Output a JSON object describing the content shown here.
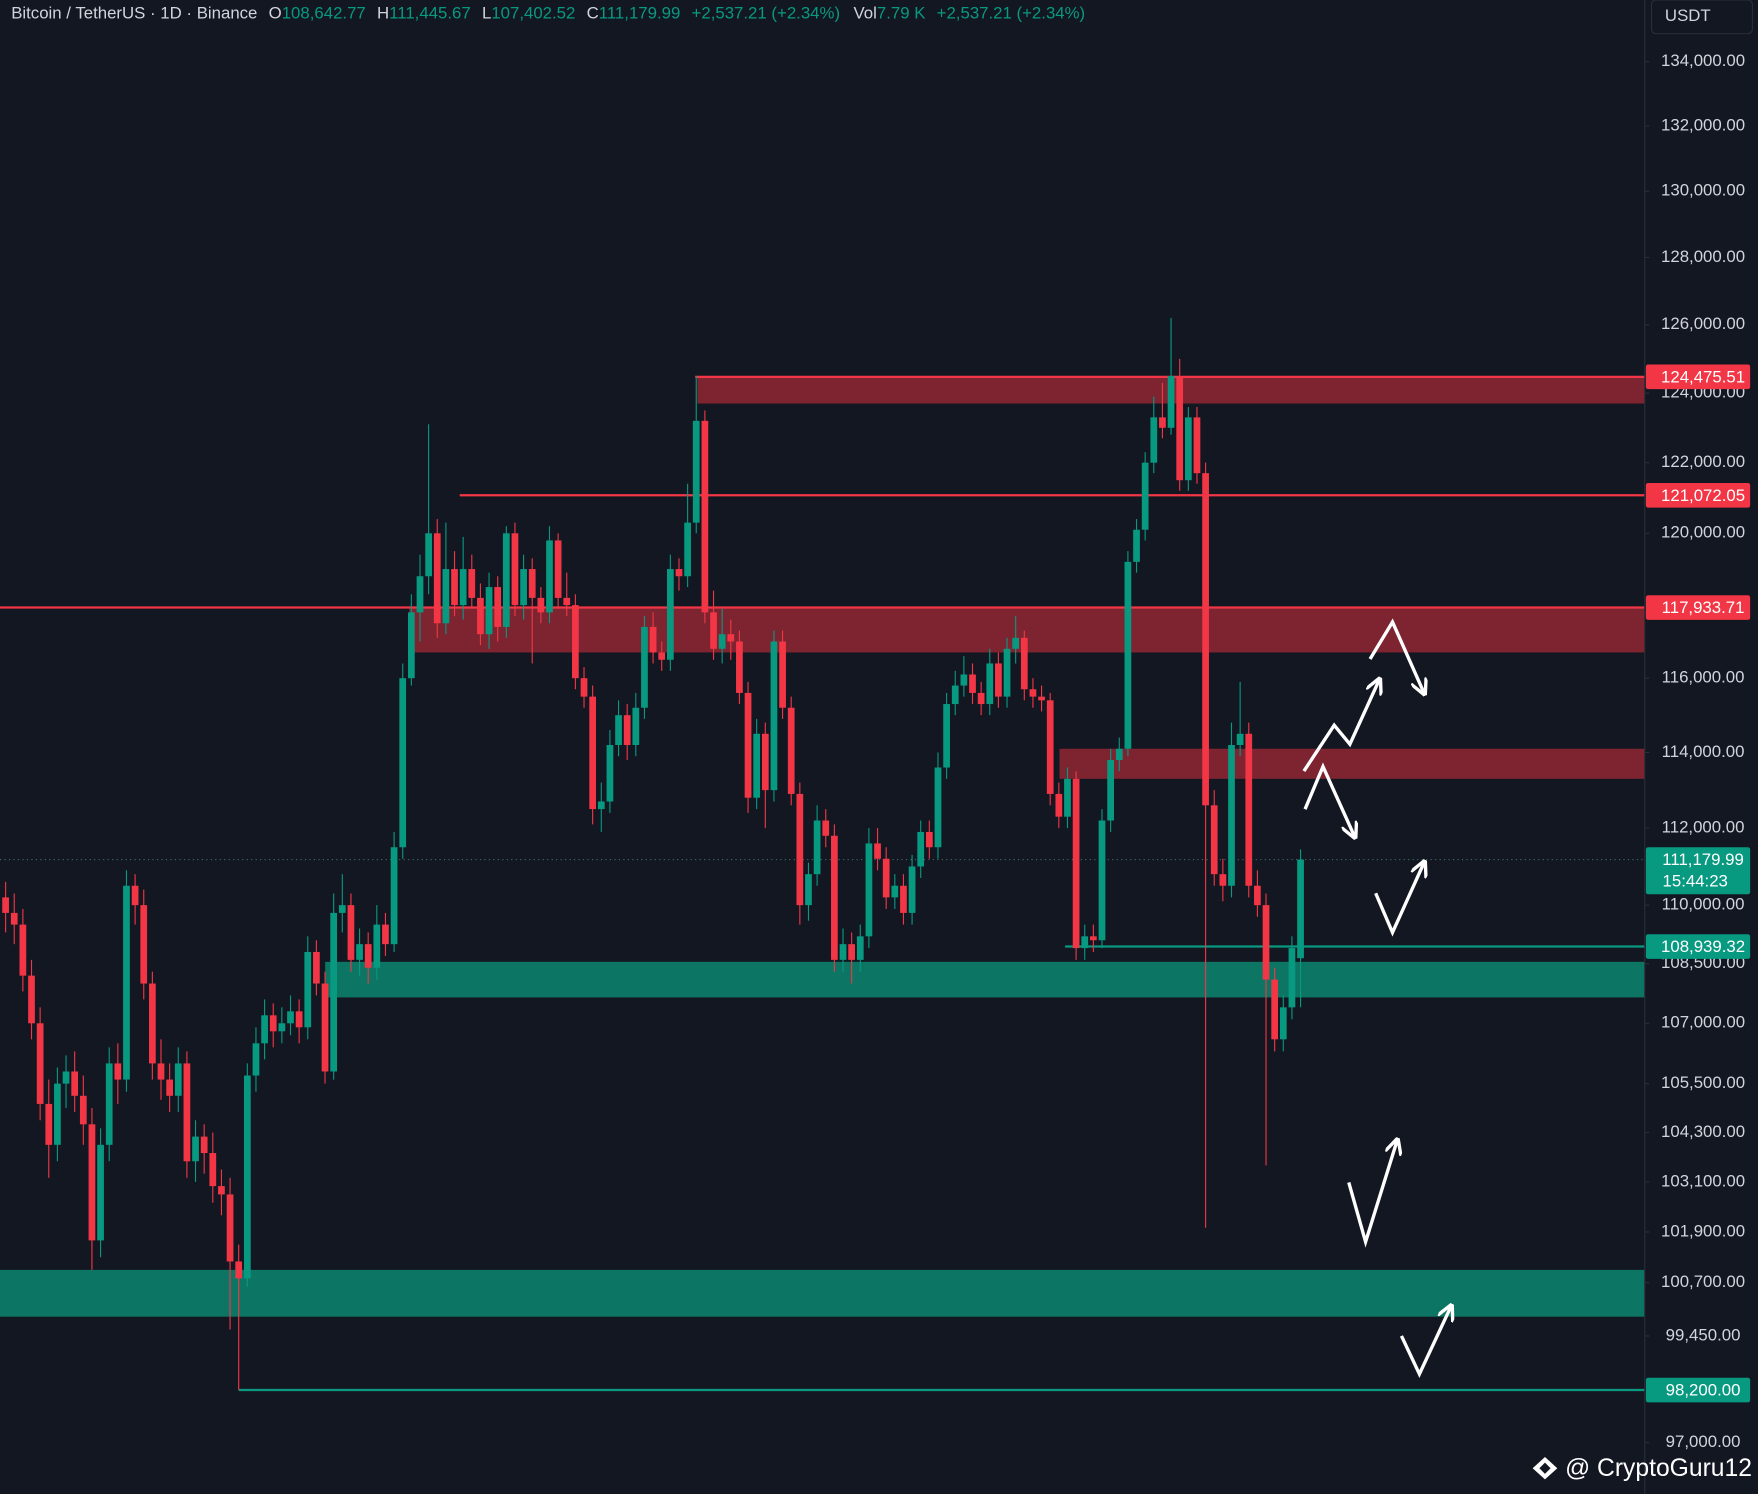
{
  "chart_data": {
    "type": "candlestick",
    "title": "Bitcoin / TetherUS · 1D · Binance",
    "ohlc_header": [
      {
        "key": "O",
        "value": "108,642.77"
      },
      {
        "key": "H",
        "value": "111,445.67"
      },
      {
        "key": "L",
        "value": "107,402.52"
      },
      {
        "key": "C",
        "value": "111,179.99"
      }
    ],
    "change": "+2,537.21 (+2.34%)",
    "volume_key": "Vol",
    "volume": "7.79 K",
    "volume_change": "+2,537.21 (+2.34%)",
    "currency": "USDT",
    "watermark": "@ CryptoGuru12",
    "log_scale": true,
    "grid": false,
    "up_color": "#089981",
    "down_color": "#f23645",
    "ylim": [
      95840,
      135950
    ],
    "yticks": [
      {
        "value": 134000,
        "label": "134,000.00"
      },
      {
        "value": 132000,
        "label": "132,000.00"
      },
      {
        "value": 130000,
        "label": "130,000.00"
      },
      {
        "value": 128000,
        "label": "128,000.00"
      },
      {
        "value": 126000,
        "label": "126,000.00"
      },
      {
        "value": 124000,
        "label": "124,000.00"
      },
      {
        "value": 122000,
        "label": "122,000.00"
      },
      {
        "value": 120000,
        "label": "120,000.00"
      },
      {
        "value": 116000,
        "label": "116,000.00"
      },
      {
        "value": 114000,
        "label": "114,000.00"
      },
      {
        "value": 112000,
        "label": "112,000.00"
      },
      {
        "value": 110000,
        "label": "110,000.00"
      },
      {
        "value": 108500,
        "label": "108,500.00"
      },
      {
        "value": 107000,
        "label": "107,000.00"
      },
      {
        "value": 105500,
        "label": "105,500.00"
      },
      {
        "value": 104300,
        "label": "104,300.00"
      },
      {
        "value": 103100,
        "label": "103,100.00"
      },
      {
        "value": 101900,
        "label": "101,900.00"
      },
      {
        "value": 100700,
        "label": "100,700.00"
      },
      {
        "value": 99450,
        "label": "99,450.00"
      },
      {
        "value": 97000,
        "label": "97,000.00"
      }
    ],
    "levels": [
      {
        "value": 124475.51,
        "label": "124,475.51",
        "color": "#f23645"
      },
      {
        "value": 121072.05,
        "label": "121,072.05",
        "color": "#f23645"
      },
      {
        "value": 117933.71,
        "label": "117,933.71",
        "color": "#f23645"
      },
      {
        "value": 108939.32,
        "label": "108,939.32",
        "color": "#089981"
      },
      {
        "value": 98200,
        "label": "98,200.00",
        "color": "#089981"
      }
    ],
    "zones": [
      {
        "low": 123700,
        "high": 124475.51,
        "color": "#7d2430"
      },
      {
        "low": 116700,
        "high": 117933.71,
        "color": "#7d2430"
      },
      {
        "low": 113300,
        "high": 114100,
        "color": "#7d2430"
      },
      {
        "low": 107650,
        "high": 108550,
        "color": "#0d7563"
      },
      {
        "low": 99900,
        "high": 101000,
        "color": "#0d7563"
      }
    ],
    "last_price": {
      "value": 111179.99,
      "label": "111,179.99",
      "countdown": "15:44:23",
      "color": "#089981"
    },
    "candles": [
      [
        110200,
        110600,
        109300,
        109800
      ],
      [
        109800,
        110300,
        109000,
        109500
      ],
      [
        109500,
        109900,
        107800,
        108200
      ],
      [
        108200,
        108600,
        106600,
        107000
      ],
      [
        107000,
        107400,
        104600,
        105000
      ],
      [
        105000,
        105600,
        103200,
        104000
      ],
      [
        104000,
        105900,
        103600,
        105500
      ],
      [
        105500,
        106200,
        104900,
        105800
      ],
      [
        105800,
        106300,
        104800,
        105200
      ],
      [
        105200,
        105700,
        104000,
        104500
      ],
      [
        104500,
        104900,
        101000,
        101700
      ],
      [
        101700,
        104400,
        101300,
        104000
      ],
      [
        104000,
        106400,
        103600,
        106000
      ],
      [
        106000,
        106500,
        105000,
        105600
      ],
      [
        105600,
        110900,
        105300,
        110500
      ],
      [
        110500,
        110800,
        109500,
        110000
      ],
      [
        110000,
        110400,
        107600,
        108000
      ],
      [
        108000,
        108300,
        105600,
        106000
      ],
      [
        106000,
        106600,
        105100,
        105600
      ],
      [
        105600,
        106000,
        104800,
        105200
      ],
      [
        105200,
        106400,
        104800,
        106000
      ],
      [
        106000,
        106300,
        103200,
        103600
      ],
      [
        103600,
        104600,
        103100,
        104200
      ],
      [
        104200,
        104500,
        103300,
        103800
      ],
      [
        103800,
        104300,
        102600,
        103000
      ],
      [
        103000,
        103400,
        102300,
        102800
      ],
      [
        102800,
        103200,
        99600,
        101200
      ],
      [
        101200,
        101600,
        98200,
        100800
      ],
      [
        100800,
        106000,
        100600,
        105700
      ],
      [
        105700,
        106900,
        105300,
        106500
      ],
      [
        106500,
        107600,
        106100,
        107200
      ],
      [
        107200,
        107500,
        106400,
        106800
      ],
      [
        106800,
        107400,
        106500,
        107000
      ],
      [
        107000,
        107700,
        106700,
        107300
      ],
      [
        107300,
        107600,
        106500,
        106900
      ],
      [
        106900,
        109200,
        106600,
        108800
      ],
      [
        108800,
        109100,
        107700,
        108000
      ],
      [
        108000,
        108300,
        105500,
        105800
      ],
      [
        105800,
        110300,
        105600,
        109800
      ],
      [
        109800,
        110800,
        109300,
        110000
      ],
      [
        110000,
        110300,
        108300,
        108600
      ],
      [
        108600,
        109400,
        108200,
        109000
      ],
      [
        109000,
        109300,
        108000,
        108400
      ],
      [
        108400,
        110000,
        108100,
        109500
      ],
      [
        109500,
        109800,
        108700,
        109000
      ],
      [
        109000,
        111900,
        108800,
        111500
      ],
      [
        111500,
        116400,
        111200,
        116000
      ],
      [
        116000,
        118300,
        115800,
        117800
      ],
      [
        117800,
        119400,
        117000,
        118800
      ],
      [
        118800,
        123100,
        118300,
        120000
      ],
      [
        120000,
        120400,
        117100,
        117500
      ],
      [
        117500,
        120300,
        117200,
        119000
      ],
      [
        119000,
        119500,
        117700,
        118000
      ],
      [
        118000,
        119900,
        117600,
        119000
      ],
      [
        119000,
        119400,
        117900,
        118200
      ],
      [
        118200,
        118600,
        116900,
        117200
      ],
      [
        117200,
        118900,
        116800,
        118500
      ],
      [
        118500,
        118800,
        117000,
        117400
      ],
      [
        117400,
        120200,
        117100,
        120000
      ],
      [
        120000,
        120300,
        117700,
        118000
      ],
      [
        118000,
        119400,
        117600,
        119000
      ],
      [
        119000,
        119300,
        116400,
        118200
      ],
      [
        118200,
        118500,
        117500,
        117800
      ],
      [
        117800,
        120200,
        117500,
        119800
      ],
      [
        119800,
        120000,
        117900,
        118200
      ],
      [
        118200,
        118900,
        117700,
        118000
      ],
      [
        118000,
        118300,
        115700,
        116000
      ],
      [
        116000,
        116300,
        115200,
        115500
      ],
      [
        115500,
        115800,
        112100,
        112500
      ],
      [
        112500,
        113200,
        111900,
        112700
      ],
      [
        112700,
        114600,
        112400,
        114200
      ],
      [
        114200,
        115400,
        113900,
        115000
      ],
      [
        115000,
        115300,
        113800,
        114200
      ],
      [
        114200,
        115600,
        113900,
        115200
      ],
      [
        115200,
        117700,
        114900,
        117400
      ],
      [
        117400,
        117800,
        116400,
        116700
      ],
      [
        116700,
        117000,
        116200,
        116500
      ],
      [
        116500,
        119400,
        116200,
        119000
      ],
      [
        119000,
        119300,
        118400,
        118800
      ],
      [
        118800,
        121400,
        118500,
        120300
      ],
      [
        120300,
        124500,
        120000,
        123200
      ],
      [
        123200,
        123500,
        117500,
        117800
      ],
      [
        117800,
        118400,
        116500,
        116800
      ],
      [
        116800,
        117900,
        116400,
        117200
      ],
      [
        117200,
        117600,
        116500,
        117000
      ],
      [
        117000,
        117300,
        115300,
        115600
      ],
      [
        115600,
        115900,
        112400,
        112800
      ],
      [
        112800,
        114900,
        112500,
        114500
      ],
      [
        114500,
        114800,
        112000,
        113000
      ],
      [
        113000,
        117300,
        112700,
        117000
      ],
      [
        117000,
        117300,
        114900,
        115200
      ],
      [
        115200,
        115500,
        112600,
        112900
      ],
      [
        112900,
        113200,
        109500,
        110000
      ],
      [
        110000,
        111100,
        109600,
        110800
      ],
      [
        110800,
        112600,
        110500,
        112200
      ],
      [
        112200,
        112500,
        111500,
        111800
      ],
      [
        111800,
        112100,
        108300,
        108600
      ],
      [
        108600,
        109400,
        108300,
        109000
      ],
      [
        109000,
        109300,
        108000,
        108600
      ],
      [
        108600,
        109500,
        108300,
        109200
      ],
      [
        109200,
        112000,
        108900,
        111600
      ],
      [
        111600,
        112000,
        110900,
        111200
      ],
      [
        111200,
        111500,
        109900,
        110200
      ],
      [
        110200,
        110800,
        109900,
        110500
      ],
      [
        110500,
        110800,
        109500,
        109800
      ],
      [
        109800,
        111300,
        109500,
        111000
      ],
      [
        111000,
        112200,
        110700,
        111900
      ],
      [
        111900,
        112200,
        111200,
        111500
      ],
      [
        111500,
        114000,
        111200,
        113600
      ],
      [
        113600,
        115600,
        113300,
        115300
      ],
      [
        115300,
        116200,
        115000,
        115800
      ],
      [
        115800,
        116600,
        115500,
        116100
      ],
      [
        116100,
        116400,
        115300,
        115600
      ],
      [
        115600,
        115900,
        115000,
        115300
      ],
      [
        115300,
        116800,
        115000,
        116400
      ],
      [
        116400,
        116700,
        115200,
        115500
      ],
      [
        115500,
        117100,
        115200,
        116800
      ],
      [
        116800,
        117700,
        116400,
        117100
      ],
      [
        117100,
        117300,
        115400,
        115700
      ],
      [
        115700,
        116000,
        115200,
        115500
      ],
      [
        115500,
        115800,
        115100,
        115400
      ],
      [
        115400,
        115600,
        112600,
        112900
      ],
      [
        112900,
        113200,
        112000,
        112300
      ],
      [
        112300,
        113600,
        112000,
        113300
      ],
      [
        113300,
        113500,
        108600,
        108900
      ],
      [
        108900,
        109500,
        108600,
        109200
      ],
      [
        109200,
        109500,
        108800,
        109100
      ],
      [
        109100,
        112500,
        108900,
        112200
      ],
      [
        112200,
        114100,
        111900,
        113800
      ],
      [
        113800,
        114400,
        113500,
        114100
      ],
      [
        114100,
        119500,
        113900,
        119200
      ],
      [
        119200,
        120400,
        118900,
        120100
      ],
      [
        120100,
        122300,
        119800,
        122000
      ],
      [
        122000,
        123900,
        121700,
        123300
      ],
      [
        123300,
        124300,
        122700,
        123000
      ],
      [
        123000,
        126200,
        122800,
        124500
      ],
      [
        124500,
        125000,
        121200,
        121500
      ],
      [
        121500,
        123600,
        121200,
        123300
      ],
      [
        123300,
        123600,
        121400,
        121700
      ],
      [
        121700,
        122000,
        102000,
        112600
      ],
      [
        112600,
        113000,
        110500,
        110800
      ],
      [
        110800,
        111200,
        110100,
        110500
      ],
      [
        110500,
        114800,
        110200,
        114200
      ],
      [
        114200,
        115900,
        113900,
        114500
      ],
      [
        114500,
        114800,
        110200,
        110500
      ],
      [
        110500,
        110900,
        109700,
        110000
      ],
      [
        110000,
        110300,
        103500,
        108100
      ],
      [
        108100,
        108400,
        106300,
        106600
      ],
      [
        106600,
        107700,
        106300,
        107400
      ],
      [
        107400,
        109200,
        107100,
        108900
      ],
      [
        108642.77,
        111445.67,
        107402.52,
        111179.99
      ]
    ]
  }
}
